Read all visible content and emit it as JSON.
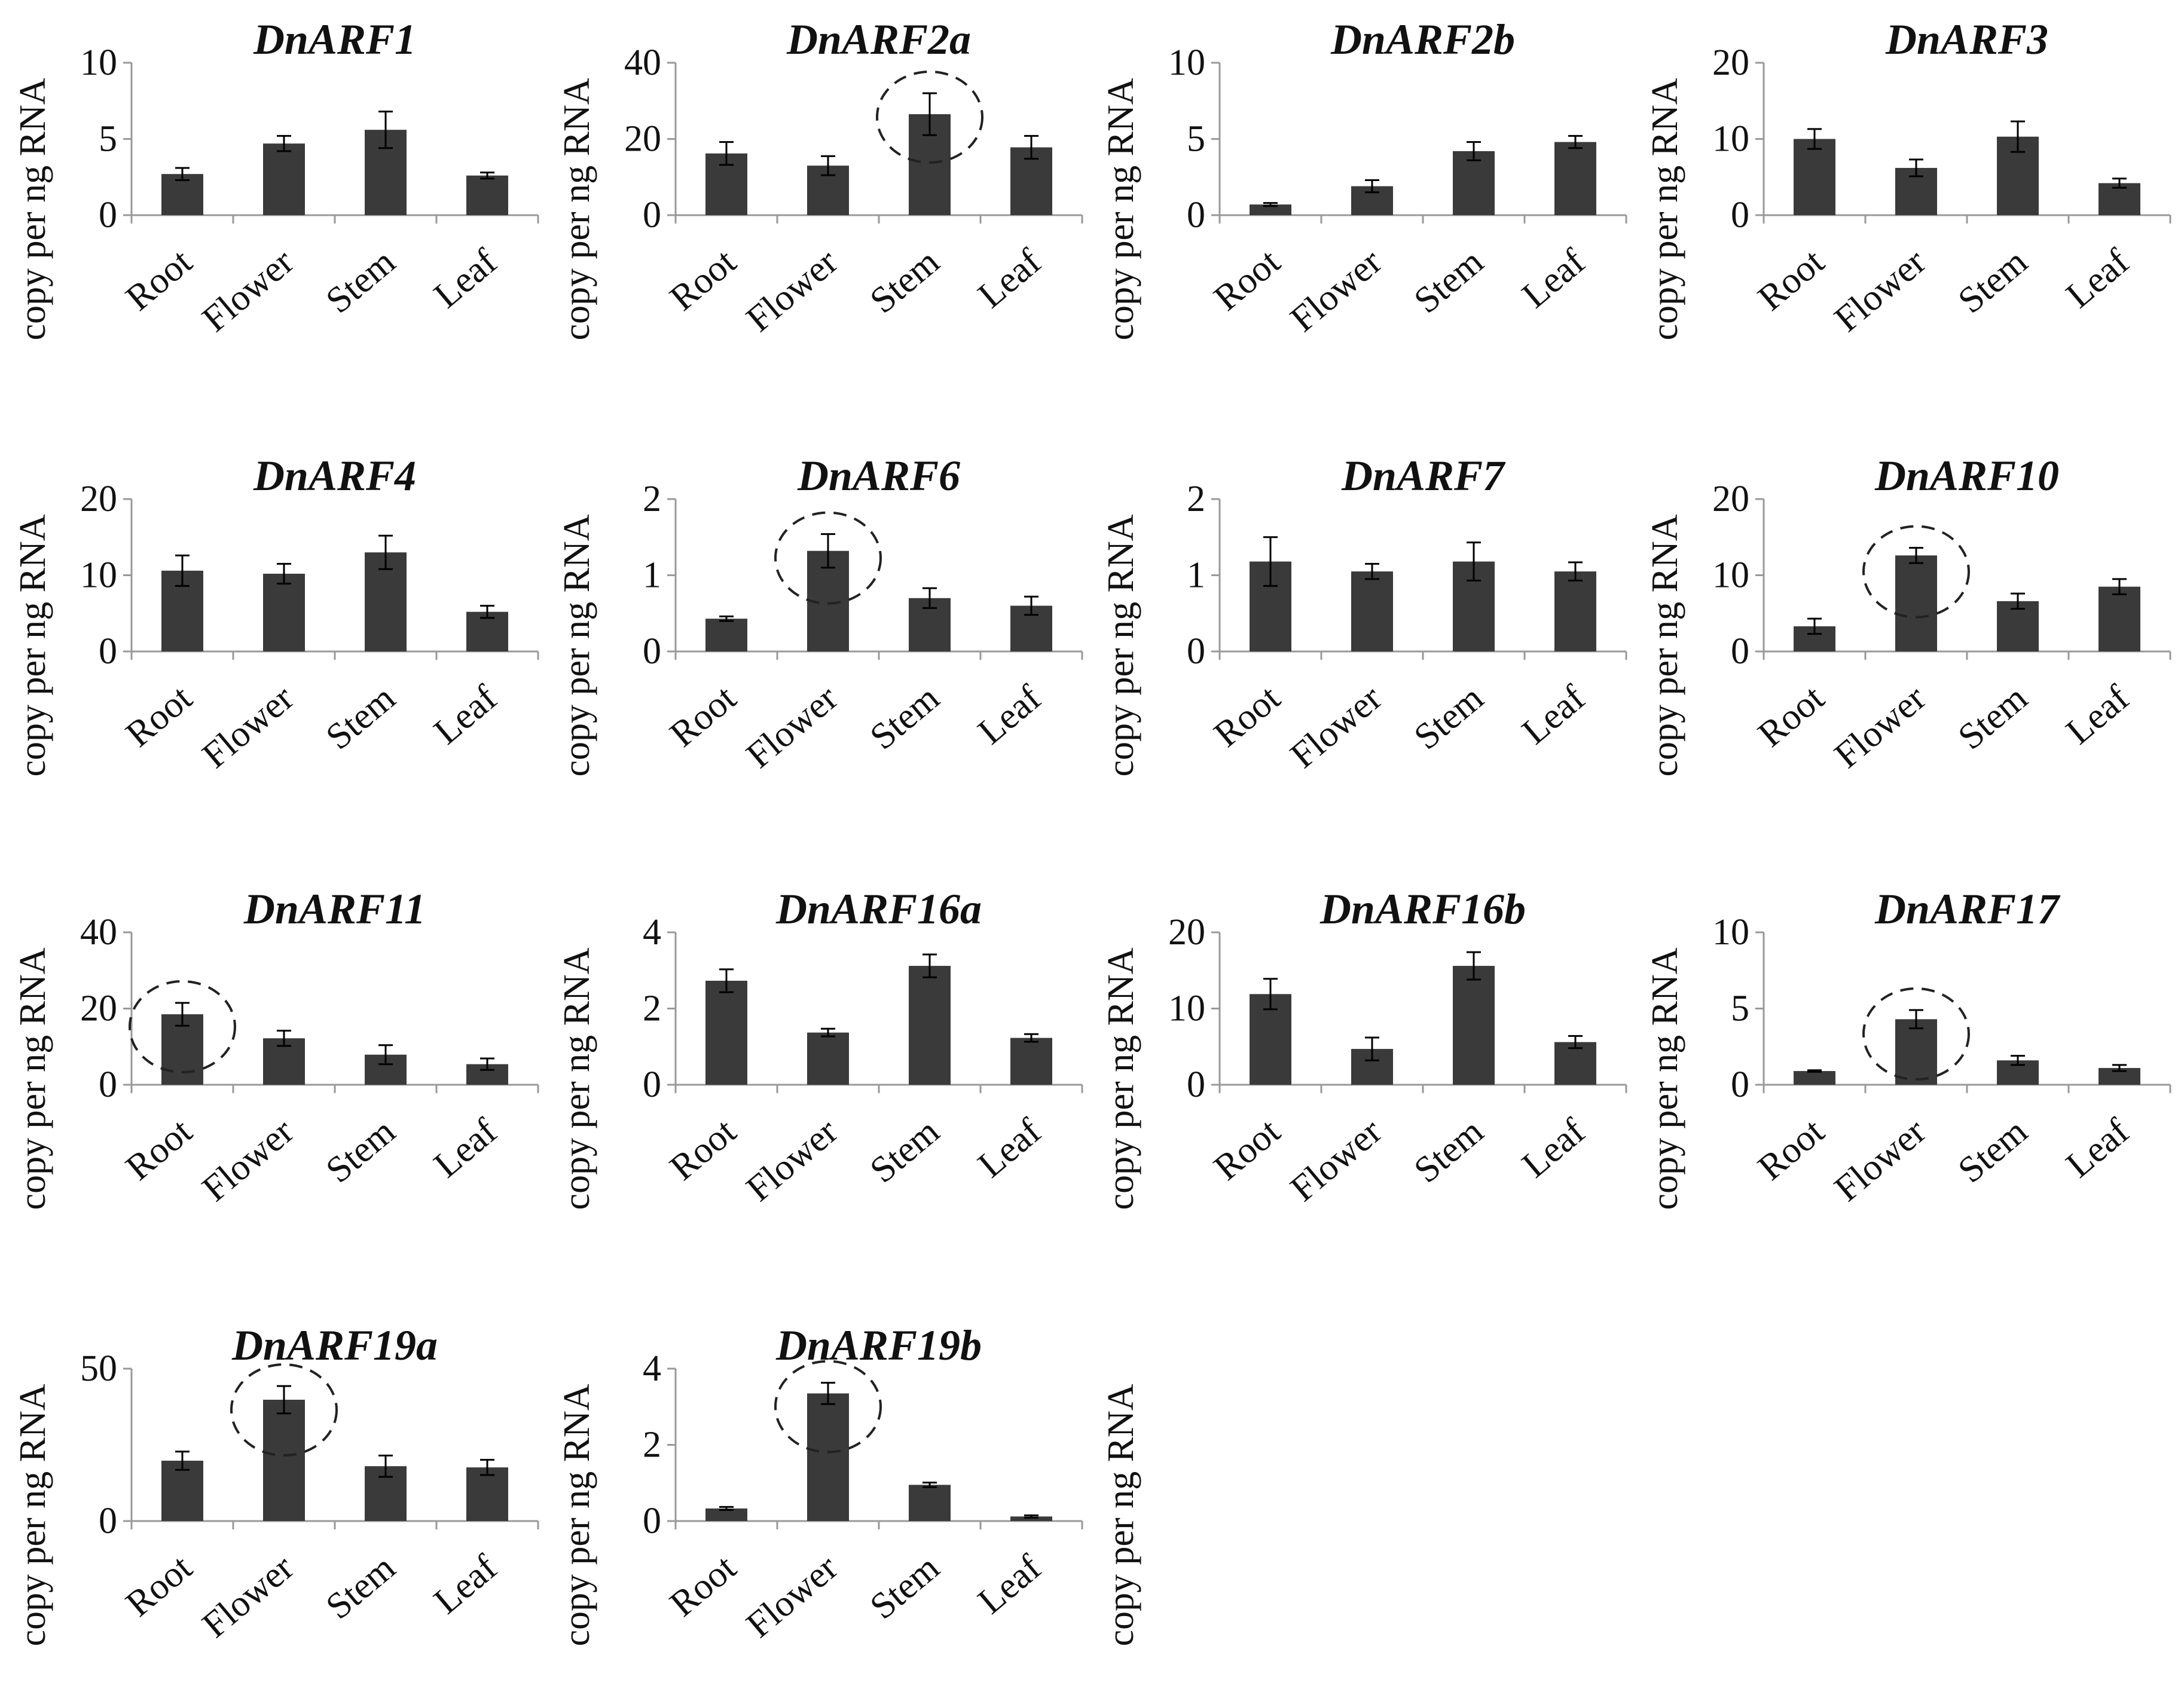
{
  "styles": {
    "bar_color": "#3a3a3a",
    "axis_color": "#999999",
    "text_color": "#111111",
    "highlight_color": "#222222"
  },
  "chart_data": [
    {
      "type": "bar",
      "title": "DnARF1",
      "ylabel": "copy per ng RNA",
      "categories": [
        "Root",
        "Flower",
        "Stem",
        "Leaf"
      ],
      "values": [
        2.7,
        4.7,
        5.6,
        2.6
      ],
      "errors": [
        0.4,
        0.5,
        1.2,
        0.2
      ],
      "ylim": [
        0,
        10
      ],
      "yticks": [
        "0",
        "5",
        "10"
      ],
      "highlight": null
    },
    {
      "type": "bar",
      "title": "DnARF2a",
      "ylabel": "copy per ng RNA",
      "categories": [
        "Root",
        "Flower",
        "Stem",
        "Leaf"
      ],
      "values": [
        16.2,
        13.0,
        26.5,
        17.8
      ],
      "errors": [
        3.0,
        2.5,
        5.5,
        3.0
      ],
      "ylim": [
        0,
        40
      ],
      "yticks": [
        "0",
        "20",
        "40"
      ],
      "highlight": 2
    },
    {
      "type": "bar",
      "title": "DnARF2b",
      "ylabel": "copy per ng RNA",
      "categories": [
        "Root",
        "Flower",
        "Stem",
        "Leaf"
      ],
      "values": [
        0.7,
        1.9,
        4.2,
        4.8
      ],
      "errors": [
        0.1,
        0.4,
        0.6,
        0.4
      ],
      "ylim": [
        0,
        10
      ],
      "yticks": [
        "0",
        "5",
        "10"
      ],
      "highlight": null
    },
    {
      "type": "bar",
      "title": "DnARF3",
      "ylabel": "copy per ng RNA",
      "categories": [
        "Root",
        "Flower",
        "Stem",
        "Leaf"
      ],
      "values": [
        10.0,
        6.2,
        10.3,
        4.2
      ],
      "errors": [
        1.3,
        1.1,
        2.0,
        0.6
      ],
      "ylim": [
        0,
        20
      ],
      "yticks": [
        "0",
        "10",
        "20"
      ],
      "highlight": null
    },
    {
      "type": "bar",
      "title": "DnARF4",
      "ylabel": "copy per ng RNA",
      "categories": [
        "Root",
        "Flower",
        "Stem",
        "Leaf"
      ],
      "values": [
        10.6,
        10.2,
        13.0,
        5.2
      ],
      "errors": [
        2.0,
        1.3,
        2.2,
        0.8
      ],
      "ylim": [
        0,
        20
      ],
      "yticks": [
        "0",
        "10",
        "20"
      ],
      "highlight": null
    },
    {
      "type": "bar",
      "title": "DnARF6",
      "ylabel": "copy per ng RNA",
      "categories": [
        "Root",
        "Flower",
        "Stem",
        "Leaf"
      ],
      "values": [
        0.43,
        1.32,
        0.7,
        0.6
      ],
      "errors": [
        0.03,
        0.22,
        0.13,
        0.12
      ],
      "ylim": [
        0,
        2
      ],
      "yticks": [
        "0",
        "1",
        "2"
      ],
      "highlight": 1
    },
    {
      "type": "bar",
      "title": "DnARF7",
      "ylabel": "copy per ng RNA",
      "categories": [
        "Root",
        "Flower",
        "Stem",
        "Leaf"
      ],
      "values": [
        1.18,
        1.05,
        1.18,
        1.05
      ],
      "errors": [
        0.32,
        0.1,
        0.25,
        0.12
      ],
      "ylim": [
        0,
        2
      ],
      "yticks": [
        "0",
        "1",
        "2"
      ],
      "highlight": null
    },
    {
      "type": "bar",
      "title": "DnARF10",
      "ylabel": "copy per ng RNA",
      "categories": [
        "Root",
        "Flower",
        "Stem",
        "Leaf"
      ],
      "values": [
        3.3,
        12.6,
        6.6,
        8.5
      ],
      "errors": [
        1.0,
        1.0,
        1.0,
        1.0
      ],
      "ylim": [
        0,
        20
      ],
      "yticks": [
        "0",
        "10",
        "20"
      ],
      "highlight": 1
    },
    {
      "type": "bar",
      "title": "DnARF11",
      "ylabel": "copy per ng RNA",
      "categories": [
        "Root",
        "Flower",
        "Stem",
        "Leaf"
      ],
      "values": [
        18.5,
        12.2,
        7.9,
        5.4
      ],
      "errors": [
        3.0,
        2.0,
        2.5,
        1.5
      ],
      "ylim": [
        0,
        40
      ],
      "yticks": [
        "0",
        "20",
        "40"
      ],
      "highlight": 0
    },
    {
      "type": "bar",
      "title": "DnARF16a",
      "ylabel": "copy per ng RNA",
      "categories": [
        "Root",
        "Flower",
        "Stem",
        "Leaf"
      ],
      "values": [
        2.73,
        1.37,
        3.12,
        1.23
      ],
      "errors": [
        0.3,
        0.1,
        0.3,
        0.1
      ],
      "ylim": [
        0,
        4
      ],
      "yticks": [
        "0",
        "2",
        "4"
      ],
      "highlight": null
    },
    {
      "type": "bar",
      "title": "DnARF16b",
      "ylabel": "copy per ng RNA",
      "categories": [
        "Root",
        "Flower",
        "Stem",
        "Leaf"
      ],
      "values": [
        11.9,
        4.7,
        15.6,
        5.6
      ],
      "errors": [
        2.0,
        1.5,
        1.8,
        0.8
      ],
      "ylim": [
        0,
        20
      ],
      "yticks": [
        "0",
        "10",
        "20"
      ],
      "highlight": null
    },
    {
      "type": "bar",
      "title": "DnARF17",
      "ylabel": "copy per ng RNA",
      "categories": [
        "Root",
        "Flower",
        "Stem",
        "Leaf"
      ],
      "values": [
        0.9,
        4.3,
        1.6,
        1.1
      ],
      "errors": [
        0.05,
        0.6,
        0.3,
        0.2
      ],
      "ylim": [
        0,
        10
      ],
      "yticks": [
        "0",
        "5",
        "10"
      ],
      "highlight": 1
    },
    {
      "type": "bar",
      "title": "DnARF19a",
      "ylabel": "copy per ng RNA",
      "categories": [
        "Root",
        "Flower",
        "Stem",
        "Leaf"
      ],
      "values": [
        19.8,
        39.8,
        18.0,
        17.6
      ],
      "errors": [
        3.0,
        4.5,
        3.5,
        2.5
      ],
      "ylim": [
        0,
        50
      ],
      "yticks": [
        "0",
        "50"
      ],
      "highlight": 1
    },
    {
      "type": "bar",
      "title": "DnARF19b",
      "ylabel": "copy per ng RNA",
      "categories": [
        "Root",
        "Flower",
        "Stem",
        "Leaf"
      ],
      "values": [
        0.33,
        3.35,
        0.95,
        0.12
      ],
      "errors": [
        0.04,
        0.28,
        0.06,
        0.03
      ],
      "ylim": [
        0,
        4
      ],
      "yticks": [
        "0",
        "2",
        "4"
      ],
      "highlight": 1
    }
  ],
  "extra_labels": [
    "copy per ng RNA"
  ]
}
